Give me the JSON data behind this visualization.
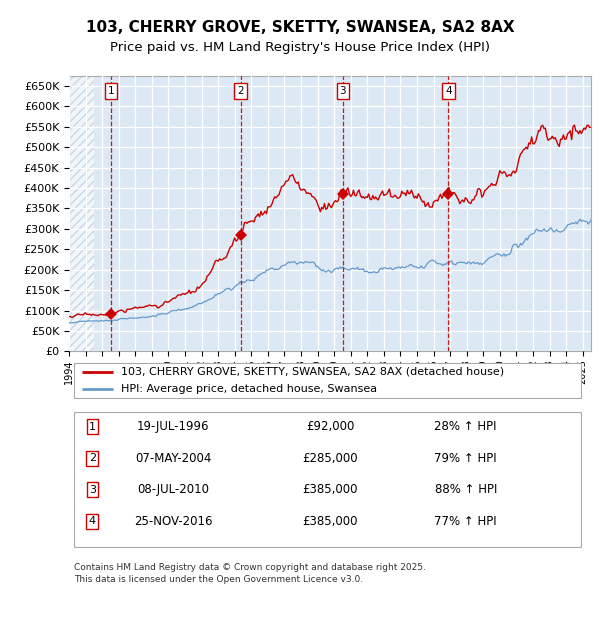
{
  "title": "103, CHERRY GROVE, SKETTY, SWANSEA, SA2 8AX",
  "subtitle": "Price paid vs. HM Land Registry's House Price Index (HPI)",
  "ylim": [
    0,
    675000
  ],
  "yticks": [
    0,
    50000,
    100000,
    150000,
    200000,
    250000,
    300000,
    350000,
    400000,
    450000,
    500000,
    550000,
    600000,
    650000
  ],
  "ytick_labels": [
    "£0",
    "£50K",
    "£100K",
    "£150K",
    "£200K",
    "£250K",
    "£300K",
    "£350K",
    "£400K",
    "£450K",
    "£500K",
    "£550K",
    "£600K",
    "£650K"
  ],
  "xlim_start": 1994.0,
  "xlim_end": 2025.5,
  "plot_bg_color": "#dce9f5",
  "hatch_color": "#b0c4d8",
  "grid_color": "#ffffff",
  "red_line_color": "#cc0000",
  "blue_line_color": "#6699cc",
  "sale_color": "#cc0000",
  "hatch_end": 1995.5,
  "sales": [
    {
      "num": 1,
      "year": 1996.55,
      "price": 92000,
      "label": "19-JUL-1996",
      "price_str": "£92,000",
      "pct": "28% ↑ HPI"
    },
    {
      "num": 2,
      "year": 2004.35,
      "price": 285000,
      "label": "07-MAY-2004",
      "price_str": "£285,000",
      "pct": "79% ↑ HPI"
    },
    {
      "num": 3,
      "year": 2010.52,
      "price": 385000,
      "label": "08-JUL-2010",
      "price_str": "£385,000",
      "pct": "88% ↑ HPI"
    },
    {
      "num": 4,
      "year": 2016.9,
      "price": 385000,
      "label": "25-NOV-2016",
      "price_str": "£385,000",
      "pct": "77% ↑ HPI"
    }
  ],
  "legend_line1": "103, CHERRY GROVE, SKETTY, SWANSEA, SA2 8AX (detached house)",
  "legend_line2": "HPI: Average price, detached house, Swansea",
  "footer": "Contains HM Land Registry data © Crown copyright and database right 2025.\nThis data is licensed under the Open Government Licence v3.0.",
  "title_fontsize": 11,
  "subtitle_fontsize": 9.5,
  "legend_fontsize": 8,
  "table_fontsize": 8.5,
  "footer_fontsize": 6.5,
  "box_num_color": "#cc0000"
}
